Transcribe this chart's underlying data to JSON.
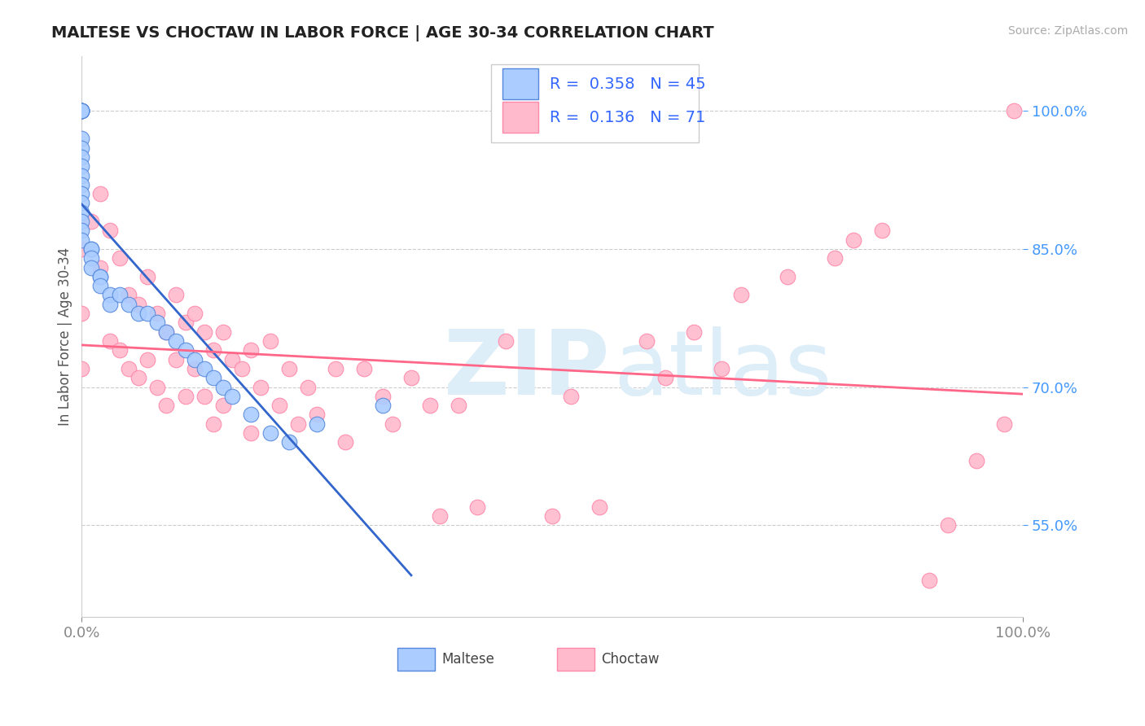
{
  "title": "MALTESE VS CHOCTAW IN LABOR FORCE | AGE 30-34 CORRELATION CHART",
  "source_text": "Source: ZipAtlas.com",
  "ylabel": "In Labor Force | Age 30-34",
  "xlim": [
    0.0,
    1.0
  ],
  "ylim": [
    0.45,
    1.06
  ],
  "yticks": [
    0.55,
    0.7,
    0.85,
    1.0
  ],
  "ytick_labels": [
    "55.0%",
    "70.0%",
    "85.0%",
    "100.0%"
  ],
  "xtick_labels": [
    "0.0%",
    "100.0%"
  ],
  "legend_maltese_R": "0.358",
  "legend_maltese_N": "45",
  "legend_choctaw_R": "0.136",
  "legend_choctaw_N": "71",
  "maltese_color": "#aaccff",
  "choctaw_color": "#ffbbcc",
  "maltese_edge_color": "#5588dd",
  "choctaw_edge_color": "#ff88aa",
  "maltese_line_color": "#3366cc",
  "choctaw_line_color": "#ff6688",
  "watermark_zip": "ZIP",
  "watermark_atlas": "atlas",
  "watermark_color": "#ddeef8",
  "background_color": "#ffffff",
  "maltese_x": [
    0.0,
    0.0,
    0.0,
    0.0,
    0.0,
    0.0,
    0.0,
    0.0,
    0.0,
    0.0,
    0.0,
    0.0,
    0.0,
    0.0,
    0.0,
    0.0,
    0.0,
    0.0,
    0.01,
    0.01,
    0.01,
    0.01,
    0.02,
    0.02,
    0.02,
    0.03,
    0.03,
    0.04,
    0.05,
    0.06,
    0.07,
    0.08,
    0.09,
    0.1,
    0.11,
    0.12,
    0.13,
    0.14,
    0.15,
    0.16,
    0.18,
    0.2,
    0.22,
    0.25,
    0.32
  ],
  "maltese_y": [
    1.0,
    1.0,
    1.0,
    1.0,
    1.0,
    1.0,
    0.97,
    0.96,
    0.95,
    0.94,
    0.93,
    0.92,
    0.91,
    0.9,
    0.89,
    0.88,
    0.87,
    0.86,
    0.85,
    0.85,
    0.84,
    0.83,
    0.82,
    0.82,
    0.81,
    0.8,
    0.79,
    0.8,
    0.79,
    0.78,
    0.78,
    0.77,
    0.76,
    0.75,
    0.74,
    0.73,
    0.72,
    0.71,
    0.7,
    0.69,
    0.67,
    0.65,
    0.64,
    0.66,
    0.68
  ],
  "choctaw_x": [
    0.0,
    0.0,
    0.0,
    0.01,
    0.02,
    0.02,
    0.03,
    0.03,
    0.04,
    0.04,
    0.05,
    0.05,
    0.06,
    0.06,
    0.07,
    0.07,
    0.08,
    0.08,
    0.09,
    0.09,
    0.1,
    0.1,
    0.11,
    0.11,
    0.12,
    0.12,
    0.13,
    0.13,
    0.14,
    0.14,
    0.15,
    0.15,
    0.16,
    0.17,
    0.18,
    0.18,
    0.19,
    0.2,
    0.21,
    0.22,
    0.23,
    0.24,
    0.25,
    0.27,
    0.28,
    0.3,
    0.32,
    0.33,
    0.35,
    0.37,
    0.38,
    0.4,
    0.42,
    0.45,
    0.5,
    0.52,
    0.55,
    0.6,
    0.62,
    0.65,
    0.68,
    0.7,
    0.75,
    0.8,
    0.82,
    0.85,
    0.9,
    0.92,
    0.95,
    0.98,
    0.99
  ],
  "choctaw_y": [
    0.85,
    0.78,
    0.72,
    0.88,
    0.91,
    0.83,
    0.87,
    0.75,
    0.84,
    0.74,
    0.8,
    0.72,
    0.79,
    0.71,
    0.82,
    0.73,
    0.78,
    0.7,
    0.76,
    0.68,
    0.8,
    0.73,
    0.77,
    0.69,
    0.78,
    0.72,
    0.76,
    0.69,
    0.74,
    0.66,
    0.76,
    0.68,
    0.73,
    0.72,
    0.74,
    0.65,
    0.7,
    0.75,
    0.68,
    0.72,
    0.66,
    0.7,
    0.67,
    0.72,
    0.64,
    0.72,
    0.69,
    0.66,
    0.71,
    0.68,
    0.56,
    0.68,
    0.57,
    0.75,
    0.56,
    0.69,
    0.57,
    0.75,
    0.71,
    0.76,
    0.72,
    0.8,
    0.82,
    0.84,
    0.86,
    0.87,
    0.49,
    0.55,
    0.62,
    0.66,
    1.0
  ]
}
